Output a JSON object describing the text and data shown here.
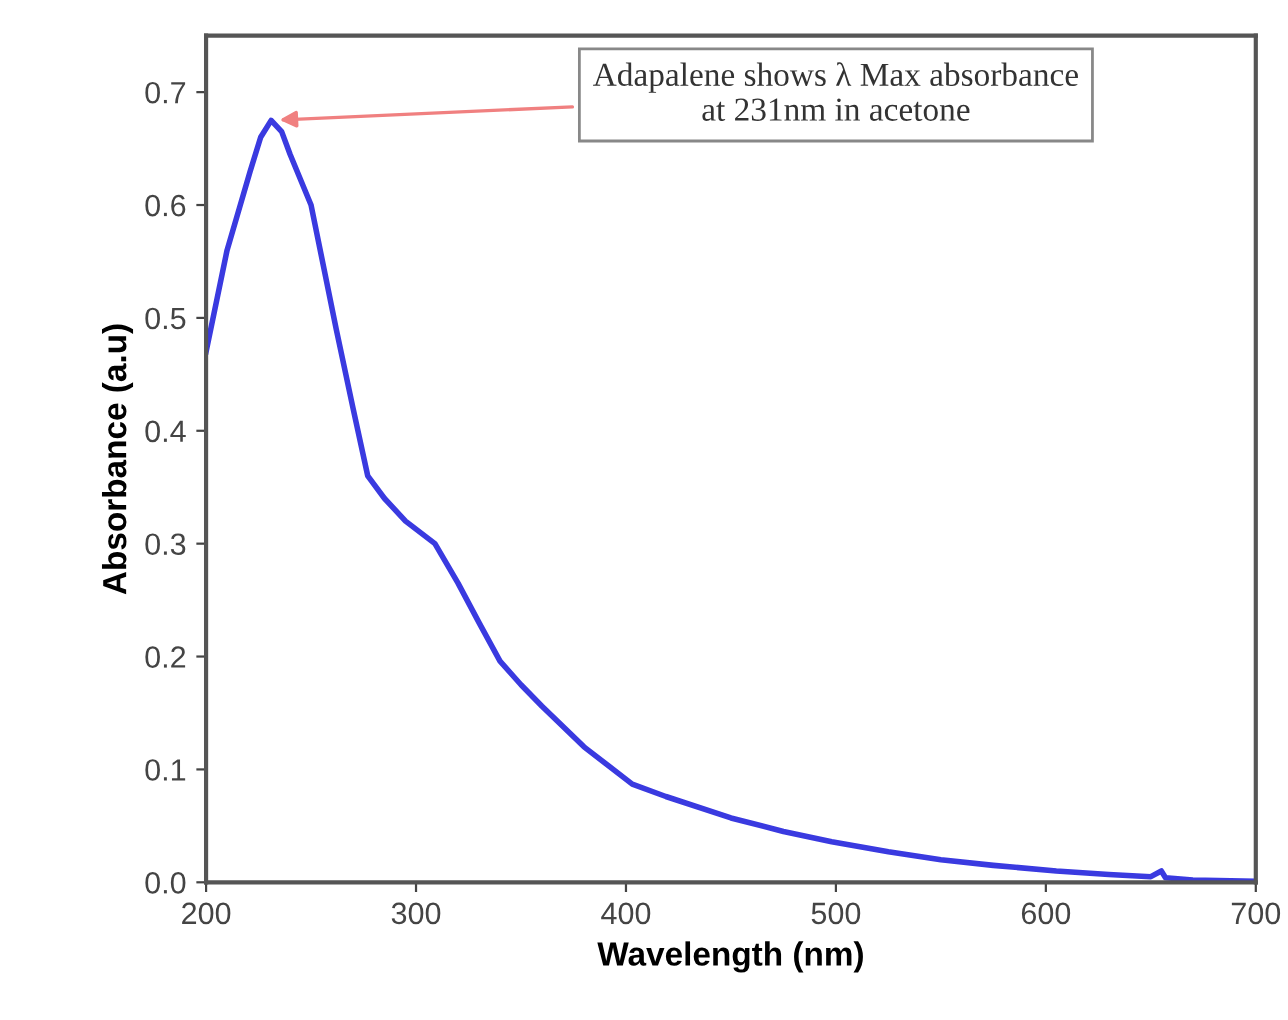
{
  "chart_data": {
    "type": "line",
    "xlabel": "Wavelength (nm)",
    "ylabel": "Absorbance (a.u)",
    "xlim": [
      200,
      700
    ],
    "ylim": [
      0,
      0.75
    ],
    "xticks": [
      200,
      300,
      400,
      500,
      600,
      700
    ],
    "yticks": [
      {
        "value": 0,
        "label": "0.0"
      },
      0.1,
      0.2,
      0.3,
      0.4,
      0.5,
      0.6,
      0.7
    ],
    "grid": false,
    "marker": "none",
    "line_style": "solid",
    "series": [
      {
        "color": "#3a3ae0",
        "x": [
          200,
          210,
          221,
          226,
          231,
          236,
          240,
          250,
          262,
          270,
          277,
          285,
          295,
          309,
          320,
          330,
          340,
          350,
          360,
          380,
          403,
          419,
          450,
          475,
          498,
          525,
          550,
          575,
          605,
          630,
          650,
          655,
          657,
          670,
          700
        ],
        "values": [
          0.47,
          0.56,
          0.63,
          0.66,
          0.675,
          0.665,
          0.645,
          0.6,
          0.49,
          0.42,
          0.36,
          0.34,
          0.32,
          0.3,
          0.265,
          0.23,
          0.196,
          0.175,
          0.156,
          0.12,
          0.087,
          0.076,
          0.057,
          0.045,
          0.036,
          0.027,
          0.02,
          0.015,
          0.01,
          0.007,
          0.005,
          0.01,
          0.004,
          0.002,
          0.001
        ]
      }
    ],
    "annotations": [
      {
        "text": "Adapalene shows λ Max absorbance\nat 231nm in acetone",
        "x": 231,
        "y": 0.675
      }
    ]
  }
}
